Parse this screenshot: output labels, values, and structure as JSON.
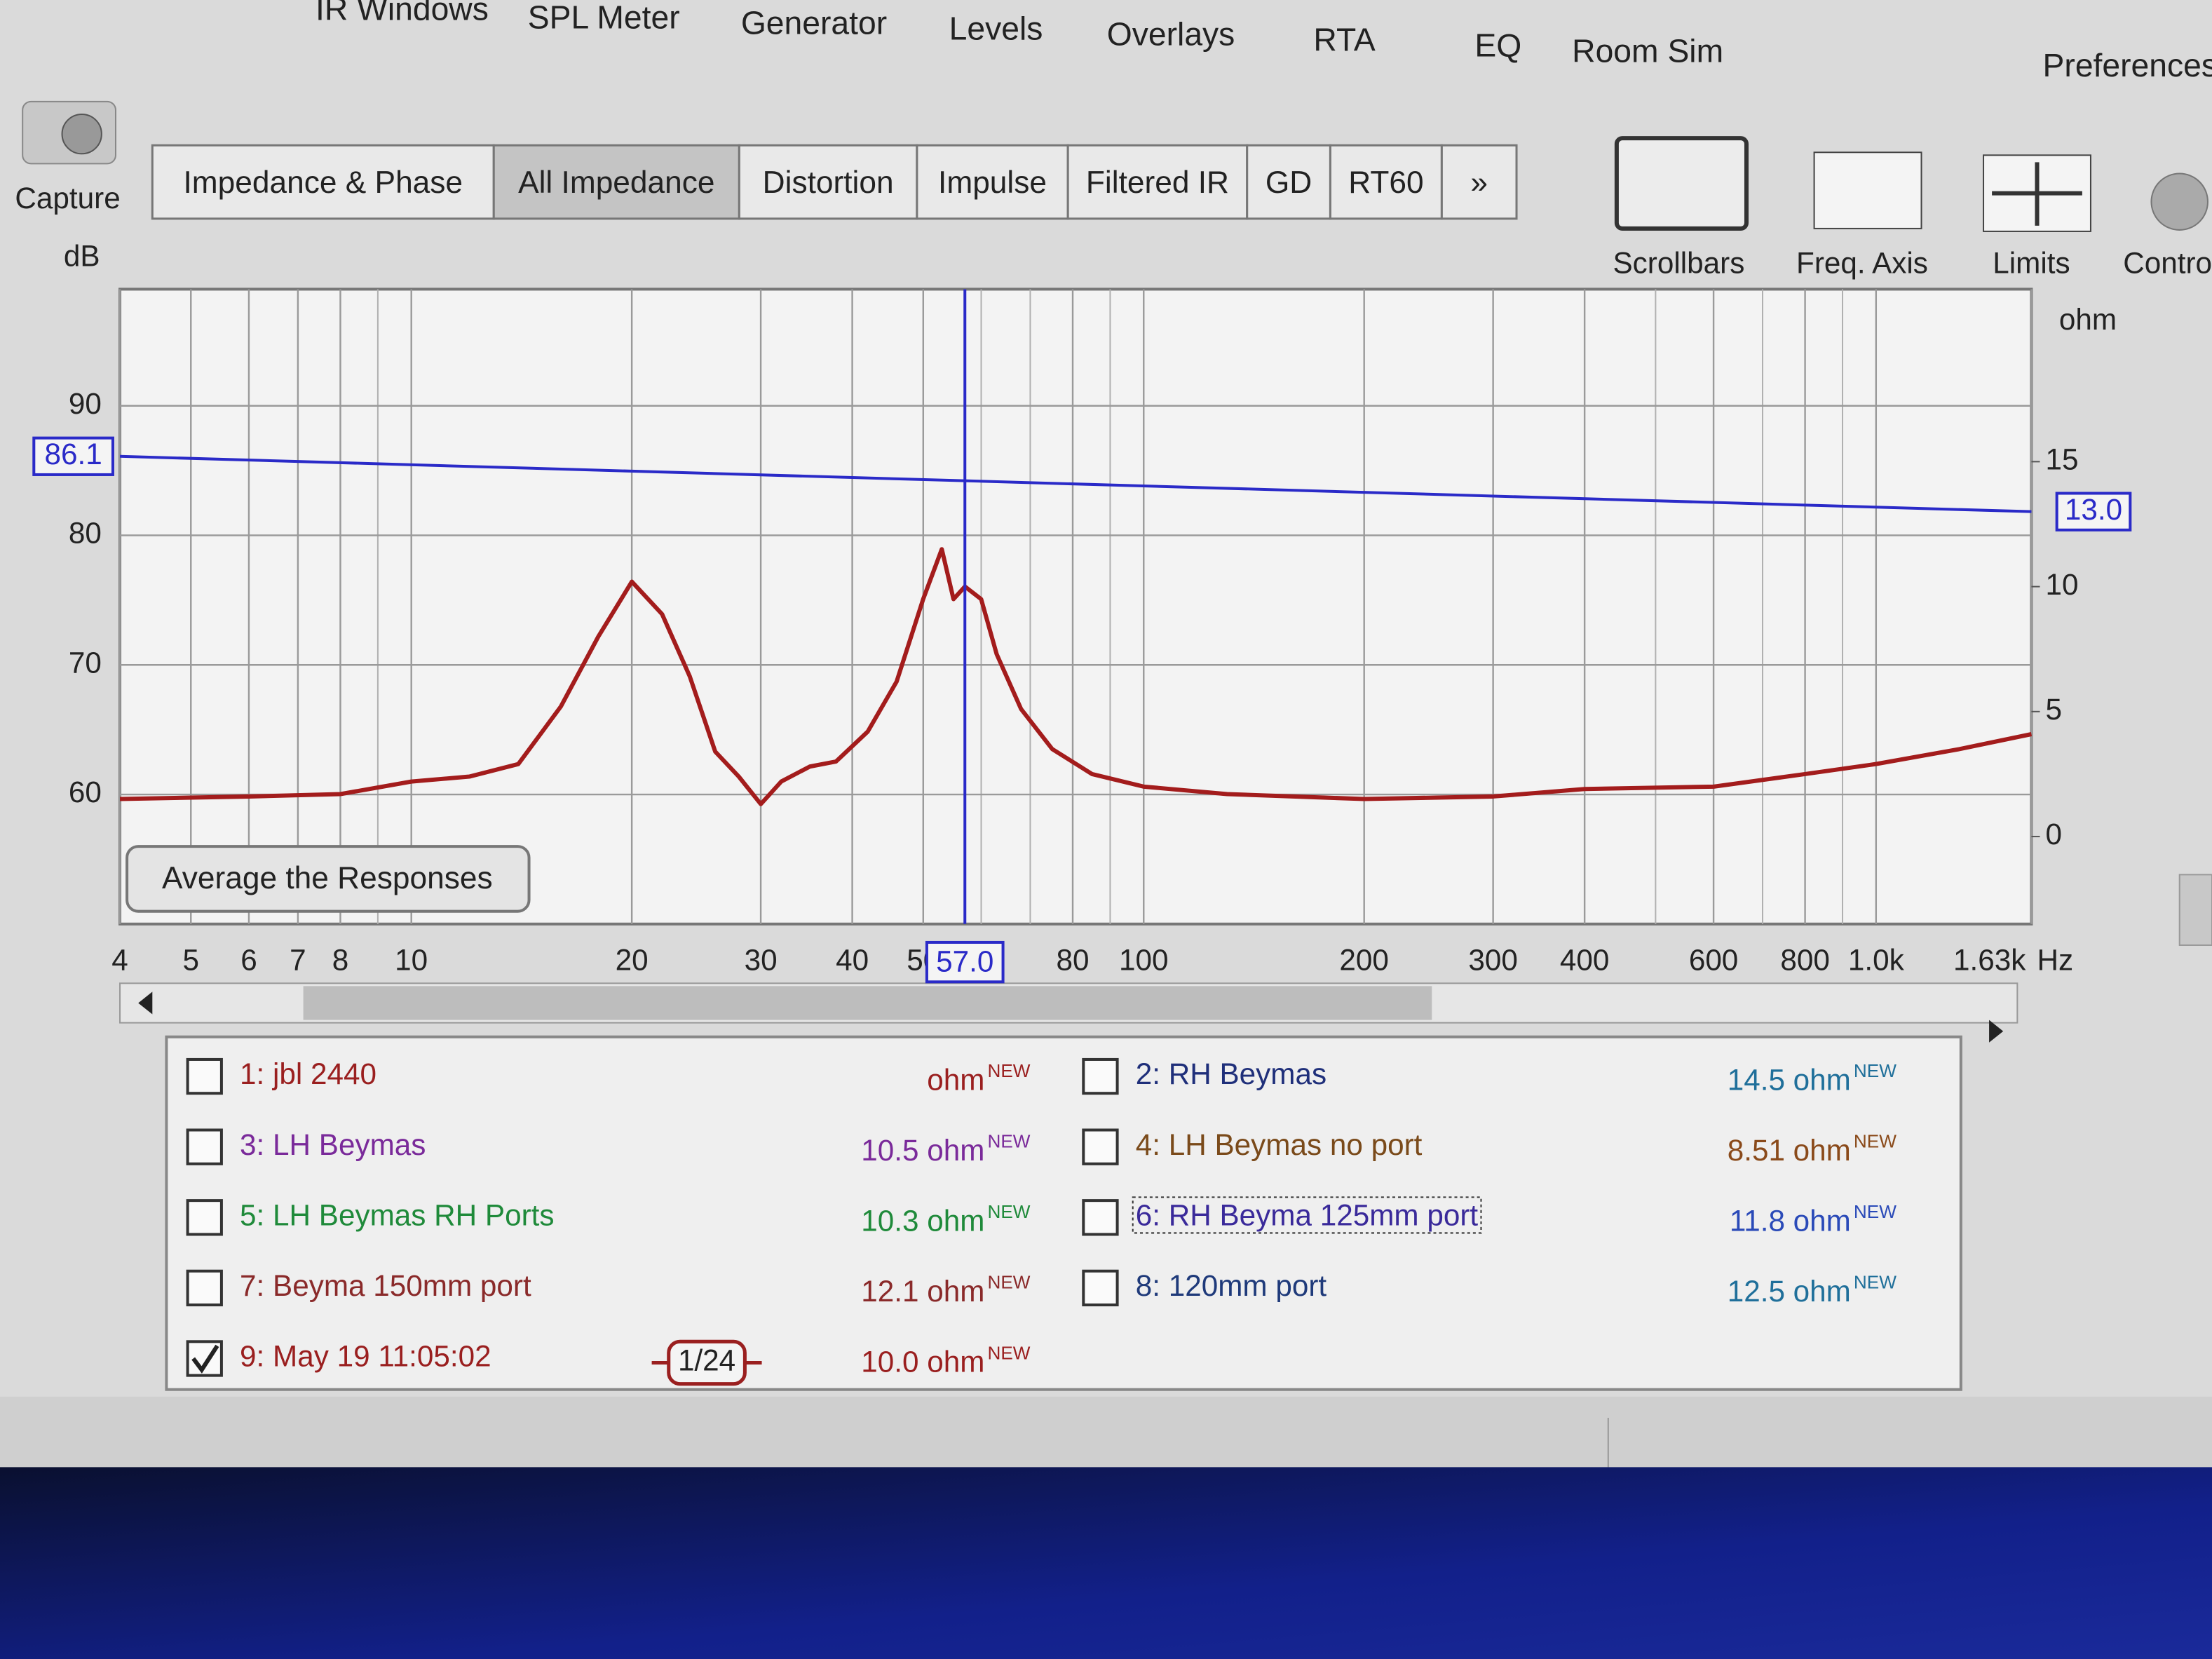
{
  "menu": [
    "IR Windows",
    "SPL Meter",
    "Generator",
    "Levels",
    "Overlays",
    "RTA",
    "EQ",
    "Room Sim",
    "Preferences"
  ],
  "capture": "Capture",
  "tabs": [
    {
      "label": "Impedance & Phase",
      "selected": false
    },
    {
      "label": "All Impedance",
      "selected": true
    },
    {
      "label": "Distortion",
      "selected": false
    },
    {
      "label": "Impulse",
      "selected": false
    },
    {
      "label": "Filtered IR",
      "selected": false
    },
    {
      "label": "GD",
      "selected": false
    },
    {
      "label": "RT60",
      "selected": false
    },
    {
      "label": "»",
      "selected": false
    }
  ],
  "tools": [
    "Scrollbars",
    "Freq. Axis",
    "Limits",
    "Controls"
  ],
  "chart_data": {
    "type": "line",
    "y_label": "dB",
    "y2_label": "ohm",
    "x_unit": "Hz",
    "x_log": true,
    "xlim": [
      4,
      1630
    ],
    "xticks": [
      4,
      5,
      6,
      7,
      8,
      10,
      20,
      30,
      40,
      50,
      80,
      100,
      200,
      300,
      400,
      600,
      800,
      {
        "value": 1000,
        "label": "1.0k"
      },
      {
        "value": 1630,
        "label": "1.63k"
      }
    ],
    "x_minor_grid": [
      9,
      60,
      70,
      90,
      500,
      700,
      900
    ],
    "ylim": [
      50,
      99
    ],
    "yticks": [
      60,
      70,
      80,
      90
    ],
    "y2lim": [
      -3.5,
      21.9
    ],
    "y2ticks": [
      0,
      5,
      10,
      15
    ],
    "grid": true,
    "x": [
      4,
      6,
      8,
      10,
      12,
      14,
      16,
      18,
      20,
      22,
      24,
      26,
      28,
      30,
      32,
      35,
      38,
      42,
      46,
      50,
      53,
      55,
      57,
      60,
      63,
      68,
      75,
      85,
      100,
      130,
      200,
      300,
      400,
      600,
      800,
      1000,
      1300,
      1630
    ],
    "series": [
      {
        "color": "#a31c1c",
        "axis": "y2",
        "values": [
          1.5,
          1.6,
          1.7,
          2.2,
          2.4,
          2.9,
          5.2,
          8.0,
          10.2,
          8.9,
          6.4,
          3.4,
          2.4,
          1.3,
          2.2,
          2.8,
          3.0,
          4.2,
          6.2,
          9.5,
          11.5,
          9.5,
          10.0,
          9.5,
          7.3,
          5.1,
          3.5,
          2.5,
          2.0,
          1.7,
          1.5,
          1.6,
          1.9,
          2.0,
          2.5,
          2.9,
          3.5,
          4.1
        ]
      }
    ],
    "cursor": {
      "x": {
        "value": 57,
        "label": "57.0"
      },
      "y": 86.1,
      "y2": {
        "value": 13,
        "label": "13.0"
      },
      "color": "#2a2ac8"
    },
    "button": "Average the Responses"
  },
  "legend": [
    {
      "label": "1: jbl 2440",
      "value": "ohm",
      "badge": "NEW",
      "color": "#9a1f1f",
      "value_color": "#9a1f1f",
      "checked": false
    },
    {
      "label": "2: RH Beymas",
      "value": "14.5 ohm",
      "badge": "NEW",
      "color": "#1f2f7a",
      "value_color": "#1f6f9a",
      "checked": false
    },
    {
      "label": "3: LH Beymas",
      "value": "10.5 ohm",
      "badge": "NEW",
      "color": "#7a2a9a",
      "value_color": "#7a2a9a",
      "checked": false
    },
    {
      "label": "4: LH Beymas no port",
      "value": "8.51 ohm",
      "badge": "NEW",
      "color": "#7a4a1a",
      "value_color": "#8a4a1a",
      "checked": false
    },
    {
      "label": "5: LH Beymas RH Ports",
      "value": "10.3 ohm",
      "badge": "NEW",
      "color": "#1f8a3a",
      "value_color": "#1f8a3a",
      "checked": false
    },
    {
      "label": "6: RH Beyma 125mm port",
      "value": "11.8 ohm",
      "badge": "NEW",
      "color": "#3a2a9a",
      "value_color": "#2a4ab8",
      "checked": false
    },
    {
      "label": "7: Beyma 150mm port",
      "value": "12.1 ohm",
      "badge": "NEW",
      "color": "#8a2a2a",
      "value_color": "#8a2a2a",
      "checked": false
    },
    {
      "label": "8: 120mm port",
      "value": "12.5 ohm",
      "badge": "NEW",
      "color": "#1f3a7a",
      "value_color": "#1f6f9a",
      "checked": false
    },
    {
      "label": "9: May 19 11:05:02",
      "value": "10.0 ohm",
      "badge": "NEW",
      "color": "#9a1f1f",
      "value_color": "#9a1f1f",
      "checked": true,
      "smoothing": "1/24"
    }
  ]
}
